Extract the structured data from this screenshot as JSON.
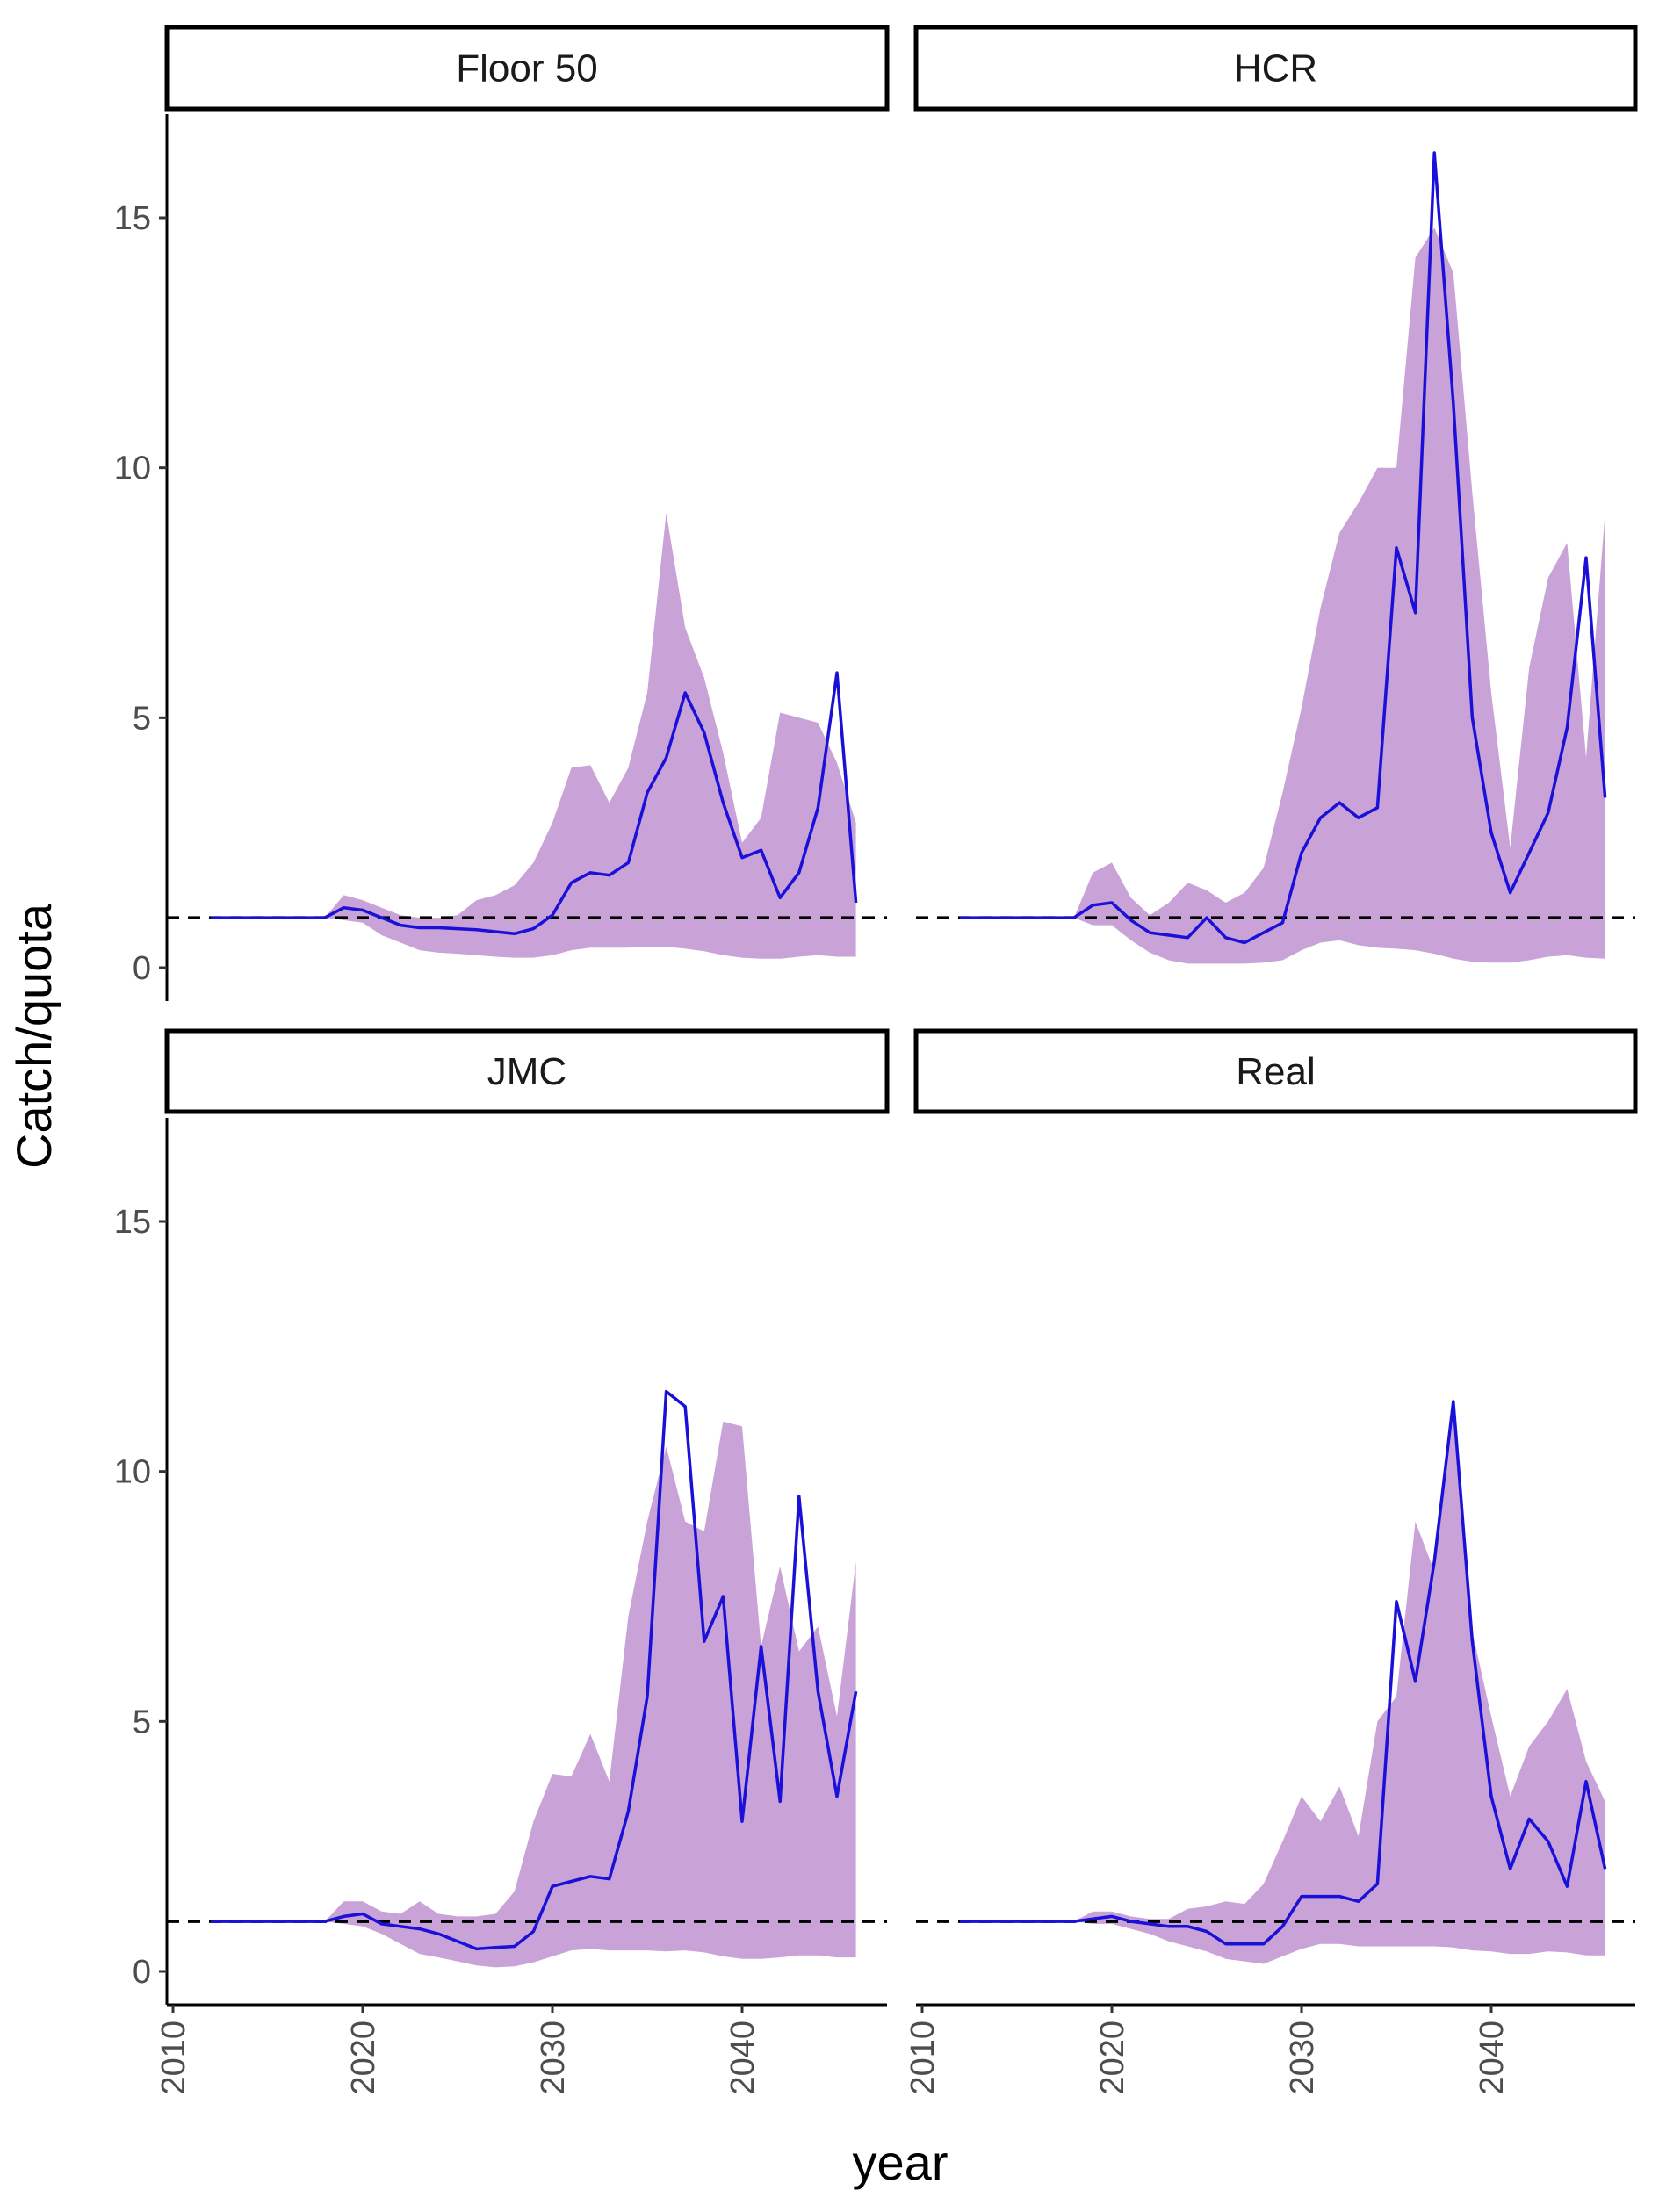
{
  "chart_data": {
    "type": "area",
    "ylabel": "Catch/quota",
    "xlabel": "year",
    "ylim": [
      -0.7,
      17.2
    ],
    "xlim": [
      2010,
      2046
    ],
    "xticks": [
      "2010",
      "2020",
      "2030",
      "2040"
    ],
    "yticks": [
      "0",
      "5",
      "10",
      "15"
    ],
    "reference_line": {
      "y": 1,
      "style": "dashed",
      "color": "#000000"
    },
    "band_color": "#c9a2d8",
    "line_color": "#1a10d8",
    "grid": false,
    "panels": [
      {
        "title": "Floor 50",
        "x": [
          2012,
          2013,
          2014,
          2015,
          2016,
          2017,
          2018,
          2019,
          2020,
          2021,
          2022,
          2023,
          2024,
          2025,
          2026,
          2027,
          2028,
          2029,
          2030,
          2031,
          2032,
          2033,
          2034,
          2035,
          2036,
          2037,
          2038,
          2039,
          2040,
          2041,
          2042,
          2043,
          2044,
          2045,
          2046
        ],
        "median": [
          1,
          1,
          1,
          1,
          1,
          1,
          1,
          1.2,
          1.15,
          1,
          0.85,
          0.8,
          0.8,
          0.78,
          0.76,
          0.72,
          0.68,
          0.78,
          1.05,
          1.7,
          1.9,
          1.85,
          2.1,
          3.5,
          4.2,
          5.5,
          4.7,
          3.3,
          2.2,
          2.35,
          1.4,
          1.9,
          3.2,
          5.9,
          1.3
        ],
        "upper": [
          1,
          1,
          1,
          1,
          1,
          1,
          1,
          1.45,
          1.35,
          1.2,
          1.05,
          1,
          1,
          1.05,
          1.35,
          1.45,
          1.65,
          2.1,
          2.9,
          4,
          4.05,
          3.3,
          4,
          5.5,
          9.1,
          6.8,
          5.8,
          4.3,
          2.5,
          3,
          5.1,
          5,
          4.9,
          4.1,
          2.9
        ],
        "lower": [
          1,
          1,
          1,
          1,
          1,
          1,
          1,
          0.95,
          0.9,
          0.65,
          0.5,
          0.35,
          0.3,
          0.28,
          0.25,
          0.22,
          0.2,
          0.2,
          0.25,
          0.35,
          0.4,
          0.4,
          0.4,
          0.42,
          0.42,
          0.38,
          0.33,
          0.25,
          0.2,
          0.18,
          0.18,
          0.22,
          0.25,
          0.22,
          0.22
        ]
      },
      {
        "title": "HCR",
        "x": [
          2012,
          2013,
          2014,
          2015,
          2016,
          2017,
          2018,
          2019,
          2020,
          2021,
          2022,
          2023,
          2024,
          2025,
          2026,
          2027,
          2028,
          2029,
          2030,
          2031,
          2032,
          2033,
          2034,
          2035,
          2036,
          2037,
          2038,
          2039,
          2040,
          2041,
          2042,
          2043,
          2044,
          2045,
          2046
        ],
        "median": [
          1,
          1,
          1,
          1,
          1,
          1,
          1,
          1.25,
          1.3,
          0.95,
          0.7,
          0.65,
          0.6,
          1,
          0.6,
          0.5,
          0.7,
          0.9,
          2.3,
          3,
          3.3,
          3,
          3.2,
          8.4,
          7.1,
          16.3,
          11.3,
          5,
          2.7,
          1.5,
          2.3,
          3.1,
          4.8,
          8.2,
          3.4
        ],
        "upper": [
          1,
          1,
          1,
          1,
          1,
          1,
          1,
          1.9,
          2.1,
          1.4,
          1.05,
          1.3,
          1.7,
          1.55,
          1.3,
          1.5,
          2,
          3.5,
          5.2,
          7.2,
          8.7,
          9.3,
          10,
          10,
          14.2,
          14.8,
          13.9,
          9.5,
          5.5,
          2.4,
          6,
          7.8,
          8.5,
          4.2,
          9.1
        ],
        "lower": [
          1,
          1,
          1,
          1,
          1,
          1,
          1,
          0.85,
          0.85,
          0.55,
          0.3,
          0.15,
          0.08,
          0.08,
          0.08,
          0.08,
          0.1,
          0.15,
          0.35,
          0.5,
          0.55,
          0.45,
          0.4,
          0.38,
          0.35,
          0.28,
          0.18,
          0.12,
          0.1,
          0.1,
          0.15,
          0.22,
          0.25,
          0.2,
          0.18
        ]
      },
      {
        "title": "JMC",
        "x": [
          2012,
          2013,
          2014,
          2015,
          2016,
          2017,
          2018,
          2019,
          2020,
          2021,
          2022,
          2023,
          2024,
          2025,
          2026,
          2027,
          2028,
          2029,
          2030,
          2031,
          2032,
          2033,
          2034,
          2035,
          2036,
          2037,
          2038,
          2039,
          2040,
          2041,
          2042,
          2043,
          2044,
          2045,
          2046
        ],
        "median": [
          1,
          1,
          1,
          1,
          1,
          1,
          1,
          1.1,
          1.15,
          0.95,
          0.9,
          0.85,
          0.75,
          0.6,
          0.45,
          0.48,
          0.5,
          0.8,
          1.7,
          1.8,
          1.9,
          1.85,
          3.2,
          5.5,
          11.6,
          11.3,
          6.6,
          7.5,
          3,
          6.5,
          3.4,
          9.5,
          5.6,
          3.5,
          5.6
        ],
        "upper": [
          1,
          1,
          1,
          1,
          1,
          1,
          1,
          1.4,
          1.4,
          1.2,
          1.15,
          1.4,
          1.15,
          1.1,
          1.1,
          1.15,
          1.6,
          3,
          3.95,
          3.9,
          4.75,
          3.8,
          7.1,
          9,
          10.5,
          9,
          8.8,
          11,
          10.9,
          6.5,
          8.1,
          6.4,
          6.9,
          5.1,
          8.2
        ],
        "lower": [
          1,
          1,
          1,
          1,
          1,
          1,
          1,
          0.95,
          0.9,
          0.75,
          0.55,
          0.35,
          0.28,
          0.2,
          0.12,
          0.08,
          0.1,
          0.18,
          0.3,
          0.42,
          0.45,
          0.42,
          0.42,
          0.42,
          0.4,
          0.42,
          0.38,
          0.3,
          0.25,
          0.25,
          0.28,
          0.32,
          0.32,
          0.28,
          0.28
        ]
      },
      {
        "title": "Real",
        "x": [
          2012,
          2013,
          2014,
          2015,
          2016,
          2017,
          2018,
          2019,
          2020,
          2021,
          2022,
          2023,
          2024,
          2025,
          2026,
          2027,
          2028,
          2029,
          2030,
          2031,
          2032,
          2033,
          2034,
          2035,
          2036,
          2037,
          2038,
          2039,
          2040,
          2041,
          2042,
          2043,
          2044,
          2045,
          2046
        ],
        "median": [
          1,
          1,
          1,
          1,
          1,
          1,
          1,
          1.05,
          1.1,
          1,
          0.95,
          0.9,
          0.9,
          0.8,
          0.55,
          0.55,
          0.55,
          0.9,
          1.5,
          1.5,
          1.5,
          1.4,
          1.75,
          7.4,
          5.8,
          8.2,
          11.4,
          6.6,
          3.5,
          2.05,
          3.05,
          2.6,
          1.7,
          3.8,
          2.05
        ],
        "upper": [
          1,
          1,
          1,
          1,
          1,
          1,
          1,
          1.2,
          1.2,
          1.1,
          1.05,
          1.05,
          1.25,
          1.3,
          1.4,
          1.35,
          1.75,
          2.6,
          3.5,
          3,
          3.7,
          2.7,
          5,
          5.5,
          9,
          8,
          11.1,
          6.8,
          5.1,
          3.5,
          4.5,
          5,
          5.65,
          4.2,
          3.4
        ],
        "lower": [
          1,
          1,
          1,
          1,
          1,
          1,
          1,
          0.95,
          0.95,
          0.85,
          0.75,
          0.6,
          0.5,
          0.4,
          0.25,
          0.2,
          0.15,
          0.3,
          0.45,
          0.55,
          0.55,
          0.5,
          0.5,
          0.5,
          0.5,
          0.5,
          0.48,
          0.42,
          0.4,
          0.35,
          0.35,
          0.4,
          0.38,
          0.32,
          0.32
        ]
      }
    ]
  }
}
